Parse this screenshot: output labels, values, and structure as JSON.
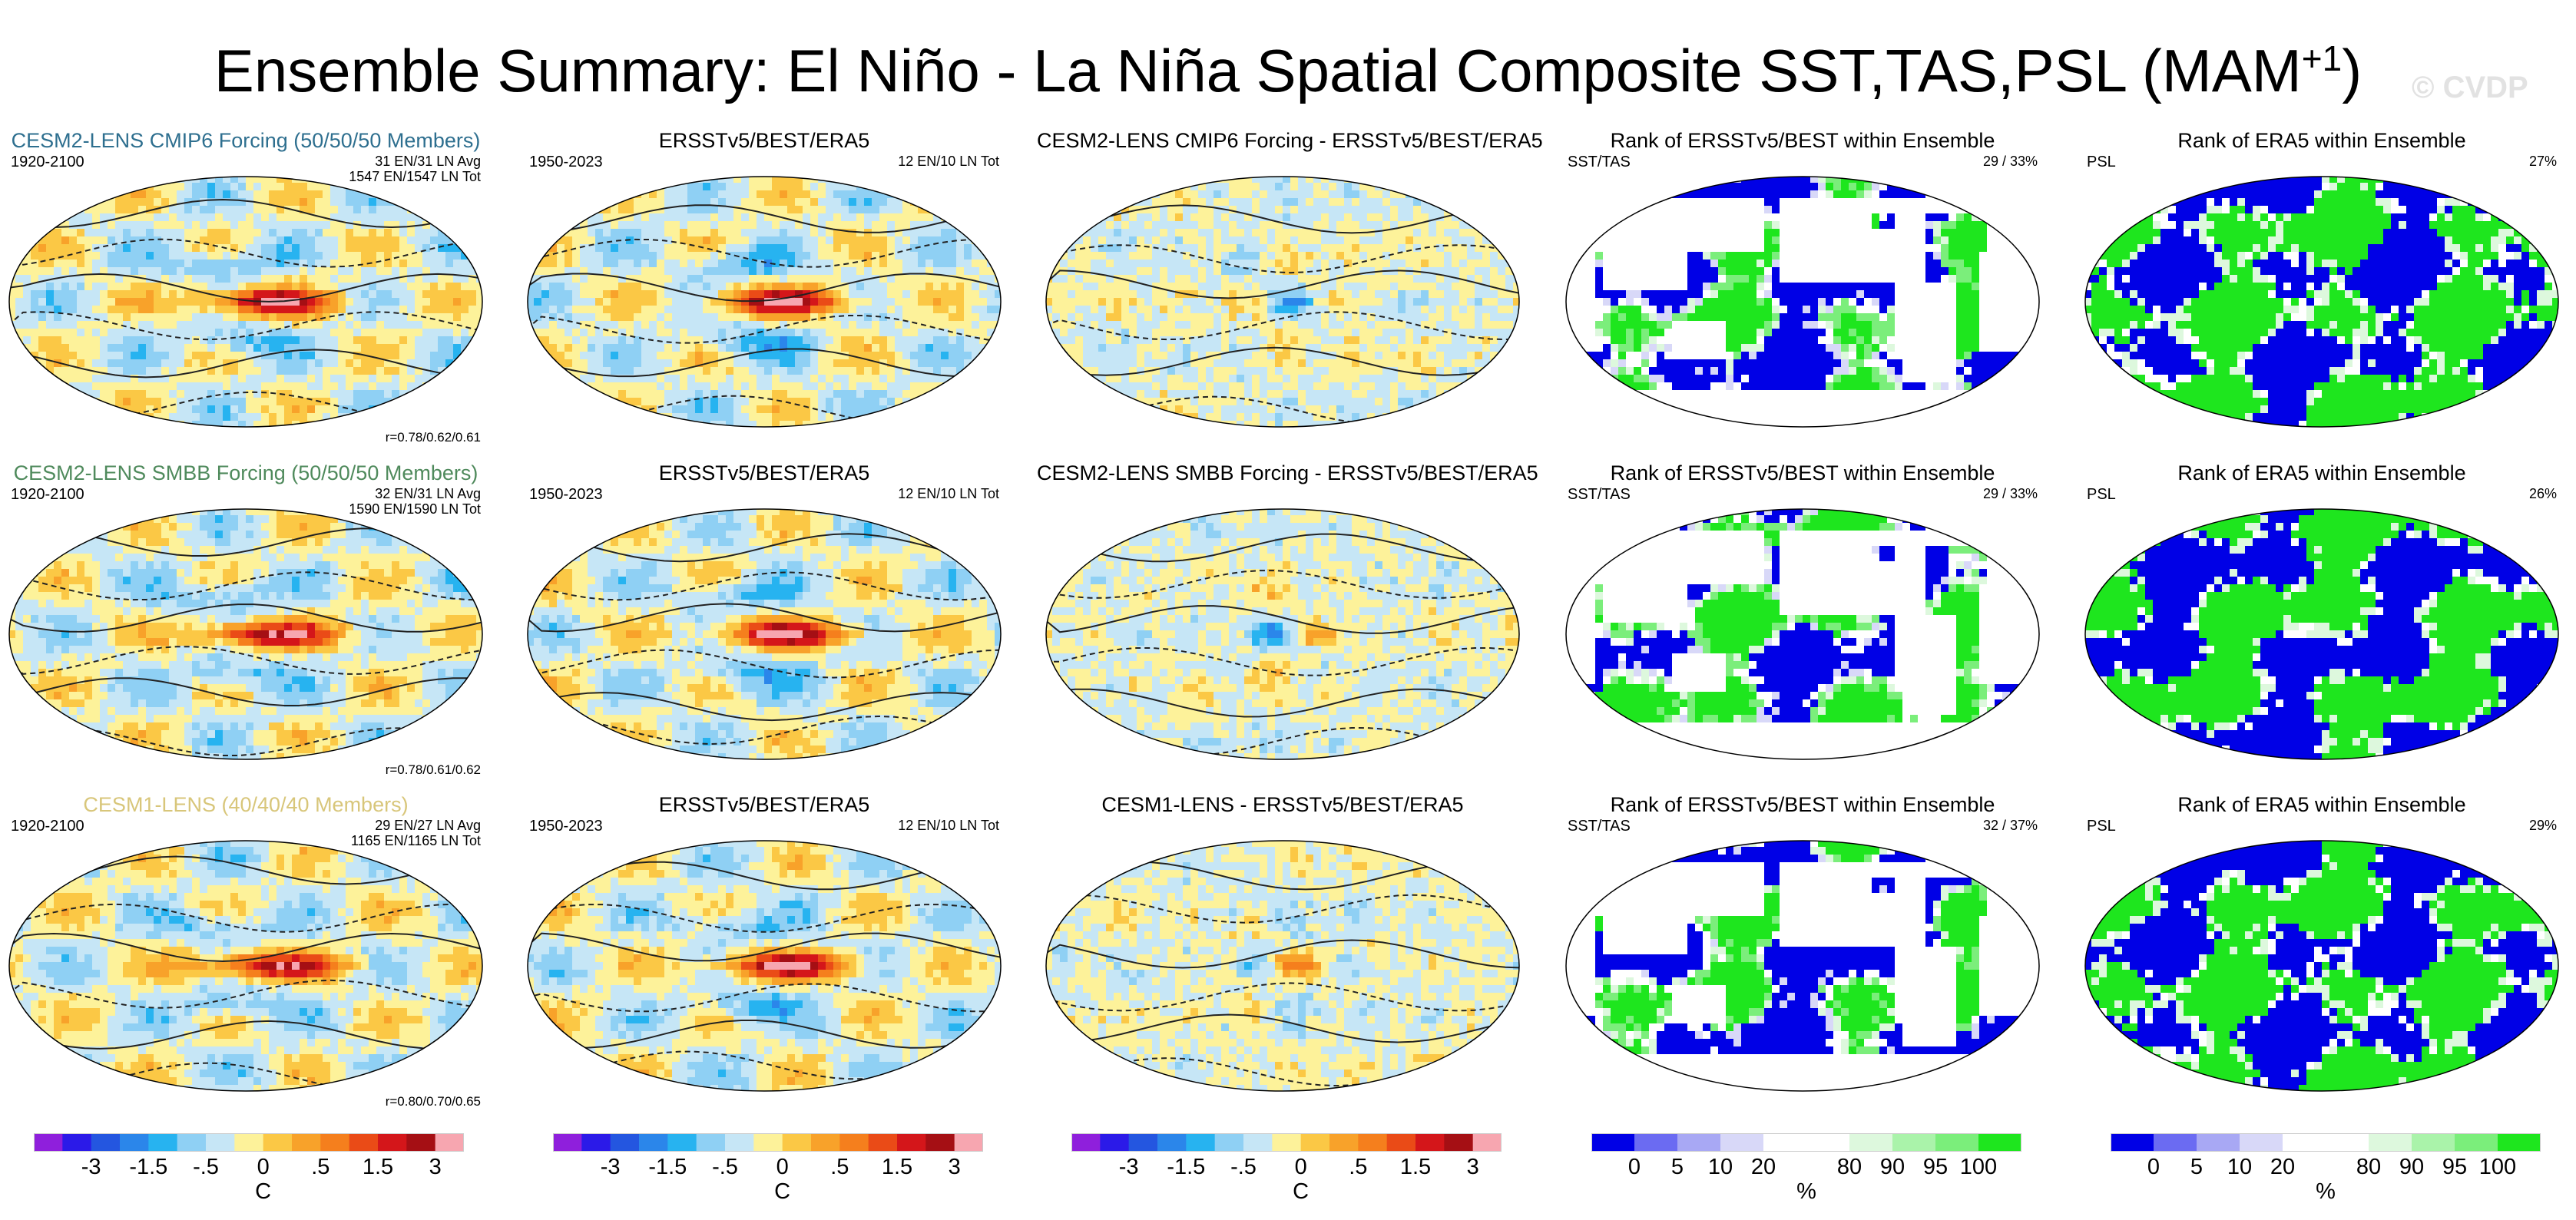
{
  "title": "Ensemble Summary: El Niño - La Niña Spatial Composite SST,TAS,PSL (MAM",
  "title_sup": "+1",
  "title_end": ")",
  "watermark": "© CVDP",
  "colors": {
    "sst_scale": [
      "#8f1fdc",
      "#2b1ae8",
      "#2456e0",
      "#2b86ea",
      "#27b3f0",
      "#8fd0f4",
      "#c6e6f6",
      "#fdf29a",
      "#fbc845",
      "#f8a22a",
      "#f57f1d",
      "#ea4b17",
      "#d4161a",
      "#a50f14",
      "#f7a6b0"
    ],
    "rank_scale": [
      "#0000e6",
      "#6b6bf2",
      "#a8a8f4",
      "#d8d8f8",
      "#ffffff",
      "#ffffff",
      "#ddf8dd",
      "#aaf3aa",
      "#7bee7b",
      "#1ee61e"
    ]
  },
  "chart_data": {
    "type": "heatmap",
    "panels": [
      {
        "row": 0,
        "col": 0,
        "title": "CESM2-LENS CMIP6 Forcing (50/50/50 Members)",
        "title_color": "#2e6f8f",
        "corner_left": "1920-2100",
        "corner_right": [
          "31 EN/31 LN Avg",
          "1547 EN/1547 LN Tot"
        ],
        "bottom_right": "r=0.78/0.62/0.61",
        "kind": "sst"
      },
      {
        "row": 0,
        "col": 1,
        "title": "ERSSTv5/BEST/ERA5",
        "title_color": "#000000",
        "corner_left": "1950-2023",
        "corner_right": [
          "12 EN/10 LN Tot"
        ],
        "bottom_right": "",
        "kind": "sst"
      },
      {
        "row": 0,
        "col": 2,
        "title": "CESM2-LENS CMIP6 Forcing - ERSSTv5/BEST/ERA5",
        "title_color": "#000000",
        "corner_left": "",
        "corner_right": [],
        "bottom_right": "",
        "kind": "diff"
      },
      {
        "row": 0,
        "col": 3,
        "title": "Rank of ERSSTv5/BEST within Ensemble",
        "title_color": "#000000",
        "corner_left": "SST/TAS",
        "corner_right": [
          "29 /  33%"
        ],
        "bottom_right": "",
        "kind": "rank"
      },
      {
        "row": 0,
        "col": 4,
        "title": "Rank of ERA5 within Ensemble",
        "title_color": "#000000",
        "corner_left": "PSL",
        "corner_right": [
          "27%"
        ],
        "bottom_right": "",
        "kind": "rankpsl"
      },
      {
        "row": 1,
        "col": 0,
        "title": "CESM2-LENS SMBB Forcing (50/50/50 Members)",
        "title_color": "#4f8a5c",
        "corner_left": "1920-2100",
        "corner_right": [
          "32 EN/31 LN Avg",
          "1590 EN/1590 LN Tot"
        ],
        "bottom_right": "r=0.78/0.61/0.62",
        "kind": "sst"
      },
      {
        "row": 1,
        "col": 1,
        "title": "ERSSTv5/BEST/ERA5",
        "title_color": "#000000",
        "corner_left": "1950-2023",
        "corner_right": [
          "12 EN/10 LN Tot"
        ],
        "bottom_right": "",
        "kind": "sst"
      },
      {
        "row": 1,
        "col": 2,
        "title": "CESM2-LENS SMBB Forcing - ERSSTv5/BEST/ERA5",
        "title_color": "#000000",
        "corner_left": "",
        "corner_right": [],
        "bottom_right": "",
        "kind": "diff"
      },
      {
        "row": 1,
        "col": 3,
        "title": "Rank of ERSSTv5/BEST within Ensemble",
        "title_color": "#000000",
        "corner_left": "SST/TAS",
        "corner_right": [
          "29 /  33%"
        ],
        "bottom_right": "",
        "kind": "rank"
      },
      {
        "row": 1,
        "col": 4,
        "title": "Rank of ERA5 within Ensemble",
        "title_color": "#000000",
        "corner_left": "PSL",
        "corner_right": [
          "26%"
        ],
        "bottom_right": "",
        "kind": "rankpsl"
      },
      {
        "row": 2,
        "col": 0,
        "title": "CESM1-LENS (40/40/40 Members)",
        "title_color": "#d8c67a",
        "corner_left": "1920-2100",
        "corner_right": [
          "29 EN/27 LN Avg",
          "1165 EN/1165 LN Tot"
        ],
        "bottom_right": "r=0.80/0.70/0.65",
        "kind": "sst"
      },
      {
        "row": 2,
        "col": 1,
        "title": "ERSSTv5/BEST/ERA5",
        "title_color": "#000000",
        "corner_left": "1950-2023",
        "corner_right": [
          "12 EN/10 LN Tot"
        ],
        "bottom_right": "",
        "kind": "sst"
      },
      {
        "row": 2,
        "col": 2,
        "title": "CESM1-LENS - ERSSTv5/BEST/ERA5",
        "title_color": "#000000",
        "corner_left": "",
        "corner_right": [],
        "bottom_right": "",
        "kind": "diff"
      },
      {
        "row": 2,
        "col": 3,
        "title": "Rank of ERSSTv5/BEST within Ensemble",
        "title_color": "#000000",
        "corner_left": "SST/TAS",
        "corner_right": [
          "32 /  37%"
        ],
        "bottom_right": "",
        "kind": "rank"
      },
      {
        "row": 2,
        "col": 4,
        "title": "Rank of ERA5 within Ensemble",
        "title_color": "#000000",
        "corner_left": "PSL",
        "corner_right": [
          "29%"
        ],
        "bottom_right": "",
        "kind": "rankpsl"
      }
    ],
    "colorbars": [
      {
        "col": 0,
        "kind": "sst",
        "labels": [
          "-3",
          "-1.5",
          "-.5",
          "0",
          ".5",
          "1.5",
          "3"
        ],
        "unit": "C"
      },
      {
        "col": 1,
        "kind": "sst",
        "labels": [
          "-3",
          "-1.5",
          "-.5",
          "0",
          ".5",
          "1.5",
          "3"
        ],
        "unit": "C"
      },
      {
        "col": 2,
        "kind": "sst",
        "labels": [
          "-3",
          "-1.5",
          "-.5",
          "0",
          ".5",
          "1.5",
          "3"
        ],
        "unit": "C"
      },
      {
        "col": 3,
        "kind": "rank",
        "labels": [
          "0",
          "5",
          "10",
          "20",
          "80",
          "90",
          "95",
          "100"
        ],
        "unit": "%"
      },
      {
        "col": 4,
        "kind": "rank",
        "labels": [
          "0",
          "5",
          "10",
          "20",
          "80",
          "90",
          "95",
          "100"
        ],
        "unit": "%"
      }
    ]
  }
}
